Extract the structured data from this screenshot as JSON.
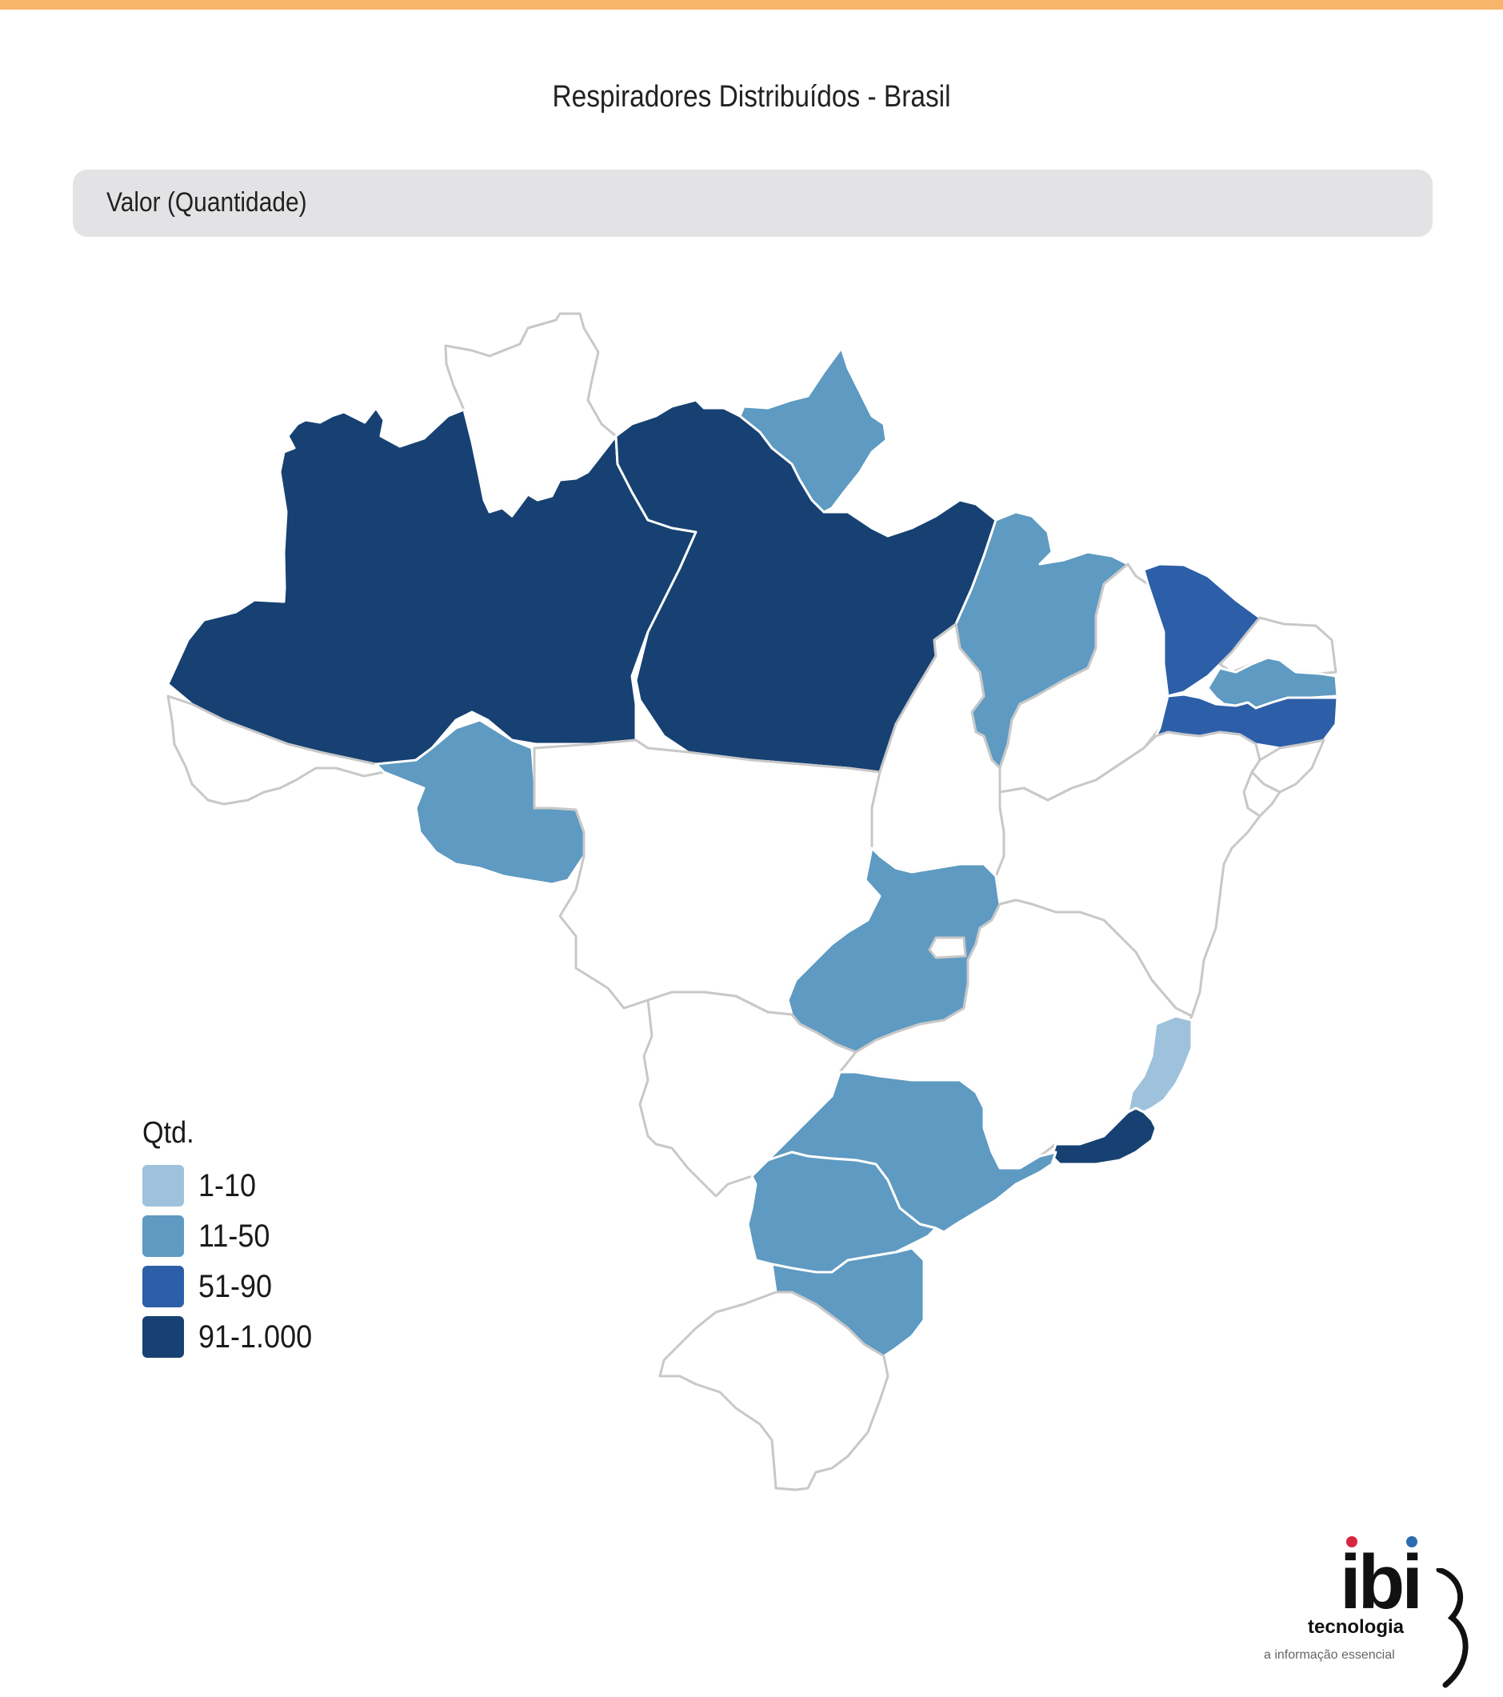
{
  "title": "Respiradores Distribuídos - Brasil",
  "metric_label": "Valor (Quantidade)",
  "legend": {
    "title": "Qtd.",
    "items": [
      {
        "label": "1-10",
        "color": "#9ec2db"
      },
      {
        "label": "11-50",
        "color": "#5e9ac1"
      },
      {
        "label": "51-90",
        "color": "#2d5ea8"
      },
      {
        "label": "91-1.000",
        "color": "#164172"
      }
    ]
  },
  "colors": {
    "accent_bar": "#f7b56a",
    "no_data": "#ffffff",
    "border": "#c8c8c8"
  },
  "states": [
    {
      "name": "AM",
      "class": "91-1.000"
    },
    {
      "name": "PA",
      "class": "91-1.000"
    },
    {
      "name": "AP",
      "class": "11-50"
    },
    {
      "name": "RR",
      "class": ""
    },
    {
      "name": "AC",
      "class": ""
    },
    {
      "name": "RO",
      "class": "11-50"
    },
    {
      "name": "MT",
      "class": ""
    },
    {
      "name": "MA",
      "class": "11-50"
    },
    {
      "name": "PI",
      "class": ""
    },
    {
      "name": "CE",
      "class": "51-90"
    },
    {
      "name": "RN",
      "class": ""
    },
    {
      "name": "PB",
      "class": "11-50"
    },
    {
      "name": "PE",
      "class": "51-90"
    },
    {
      "name": "AL",
      "class": ""
    },
    {
      "name": "SE",
      "class": ""
    },
    {
      "name": "BA",
      "class": ""
    },
    {
      "name": "TO",
      "class": ""
    },
    {
      "name": "GO",
      "class": "11-50"
    },
    {
      "name": "DF",
      "class": ""
    },
    {
      "name": "MS",
      "class": ""
    },
    {
      "name": "MG",
      "class": ""
    },
    {
      "name": "ES",
      "class": "1-10"
    },
    {
      "name": "RJ",
      "class": "91-1.000"
    },
    {
      "name": "SP",
      "class": "11-50"
    },
    {
      "name": "PR",
      "class": "11-50"
    },
    {
      "name": "SC",
      "class": "11-50"
    },
    {
      "name": "RS",
      "class": ""
    }
  ],
  "logo": {
    "mark": "ibi",
    "name": "tecnologia",
    "tagline": "a informação essencial",
    "dot_colors": [
      "#d9263f",
      "#2b6cb0"
    ]
  }
}
